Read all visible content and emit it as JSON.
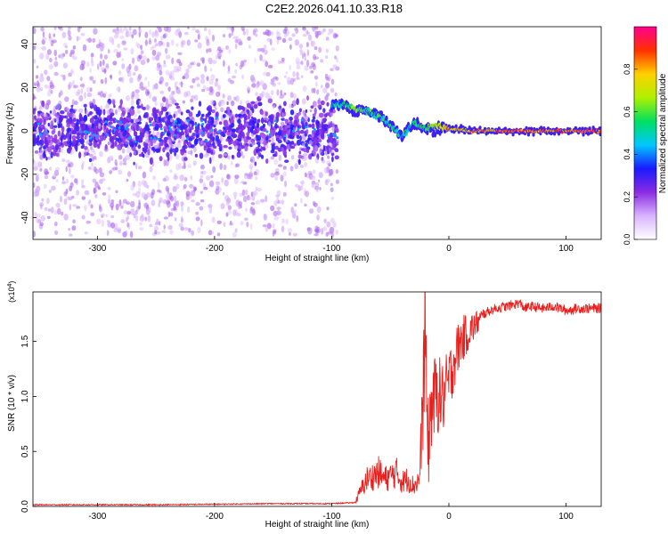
{
  "title": "C2E2.2026.041.10.33.R18",
  "chart_data": [
    {
      "type": "heatmap",
      "name": "spectrogram",
      "xlabel": "Height of straight line (km)",
      "ylabel": "Frequency (Hz)",
      "xlim": [
        -355,
        130
      ],
      "ylim": [
        -50,
        48
      ],
      "xticks": [
        -300,
        -200,
        -100,
        0,
        100
      ],
      "xtick_labels": [
        "-300",
        "-200",
        "-100",
        "0",
        "100"
      ],
      "yticks": [
        -40,
        -20,
        0,
        20,
        40
      ],
      "ytick_labels": [
        "-40",
        "-20",
        "0",
        "20",
        "40"
      ],
      "colorbar": {
        "label": "Normalized spectral amplitude",
        "range": [
          0,
          1
        ],
        "ticks": [
          0.0,
          0.2,
          0.4,
          0.6,
          0.8
        ],
        "tick_labels": [
          "0.0",
          "0.2",
          "0.4",
          "0.6",
          "0.8"
        ],
        "colors": [
          "#ffffff",
          "#d9b3ff",
          "#8a2be2",
          "#1a1aff",
          "#00c8ff",
          "#00e060",
          "#b0f000",
          "#ffd000",
          "#ff3000",
          "#ff0090"
        ]
      },
      "noise_region": {
        "x_range": [
          -355,
          -95
        ],
        "freq_spread_hz": 48,
        "core_freq_hz": 0,
        "core_amplitude": 0.3
      },
      "signal_track": [
        {
          "x": -100,
          "freq": 12,
          "amp": 0.45
        },
        {
          "x": -90,
          "freq": 12,
          "amp": 0.55
        },
        {
          "x": -80,
          "freq": 10,
          "amp": 0.6
        },
        {
          "x": -70,
          "freq": 9,
          "amp": 0.55
        },
        {
          "x": -60,
          "freq": 7,
          "amp": 0.55
        },
        {
          "x": -50,
          "freq": 3,
          "amp": 0.5
        },
        {
          "x": -40,
          "freq": -3,
          "amp": 0.45
        },
        {
          "x": -30,
          "freq": 4,
          "amp": 0.5
        },
        {
          "x": -20,
          "freq": 1,
          "amp": 0.6
        },
        {
          "x": -10,
          "freq": 2,
          "amp": 0.7
        },
        {
          "x": 0,
          "freq": 1,
          "amp": 0.75
        },
        {
          "x": 20,
          "freq": 0,
          "amp": 0.8
        },
        {
          "x": 60,
          "freq": 0,
          "amp": 0.85
        },
        {
          "x": 100,
          "freq": 0,
          "amp": 0.85
        },
        {
          "x": 130,
          "freq": 0,
          "amp": 0.85
        }
      ]
    },
    {
      "type": "line",
      "name": "snr",
      "xlabel": "Height of straight line (km)",
      "ylabel": "SNR (10 * v/v)",
      "y_scale_label": "(x10",
      "y_scale_exponent": "4",
      "y_scale_close": ")",
      "xlim": [
        -355,
        130
      ],
      "ylim": [
        0,
        1.95
      ],
      "xticks": [
        -300,
        -200,
        -100,
        0,
        100
      ],
      "xtick_labels": [
        "-300",
        "-200",
        "-100",
        "0",
        "100"
      ],
      "yticks": [
        0.0,
        0.5,
        1.0,
        1.5
      ],
      "ytick_labels": [
        "0.0",
        "0.5",
        "1.0",
        "1.5"
      ],
      "color": "#e8211e",
      "series": [
        {
          "name": "SNR",
          "x": [
            -355,
            -250,
            -150,
            -100,
            -80,
            -75,
            -70,
            -65,
            -60,
            -55,
            -50,
            -45,
            -40,
            -35,
            -30,
            -25,
            -22,
            -20,
            -18,
            -15,
            -10,
            -5,
            0,
            5,
            10,
            15,
            20,
            25,
            30,
            35,
            40,
            50,
            60,
            65,
            70,
            80,
            90,
            100,
            110,
            120,
            130
          ],
          "y": [
            0.01,
            0.01,
            0.02,
            0.02,
            0.03,
            0.12,
            0.2,
            0.22,
            0.25,
            0.2,
            0.22,
            0.25,
            0.18,
            0.2,
            0.15,
            0.2,
            0.8,
            1.5,
            0.6,
            1.0,
            1.1,
            1.05,
            1.2,
            1.4,
            1.55,
            1.6,
            1.65,
            1.7,
            1.75,
            1.78,
            1.8,
            1.82,
            1.85,
            1.8,
            1.82,
            1.8,
            1.82,
            1.78,
            1.8,
            1.8,
            1.8
          ]
        }
      ]
    }
  ]
}
